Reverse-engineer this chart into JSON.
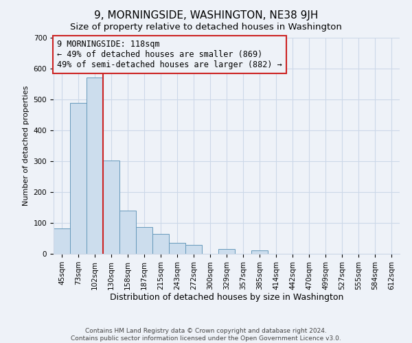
{
  "title": "9, MORNINGSIDE, WASHINGTON, NE38 9JH",
  "subtitle": "Size of property relative to detached houses in Washington",
  "xlabel": "Distribution of detached houses by size in Washington",
  "ylabel": "Number of detached properties",
  "bar_labels": [
    "45sqm",
    "73sqm",
    "102sqm",
    "130sqm",
    "158sqm",
    "187sqm",
    "215sqm",
    "243sqm",
    "272sqm",
    "300sqm",
    "329sqm",
    "357sqm",
    "385sqm",
    "414sqm",
    "442sqm",
    "470sqm",
    "499sqm",
    "527sqm",
    "555sqm",
    "584sqm",
    "612sqm"
  ],
  "bar_values": [
    83,
    488,
    571,
    302,
    140,
    87,
    65,
    36,
    30,
    0,
    16,
    0,
    12,
    0,
    0,
    0,
    0,
    0,
    0,
    0,
    0
  ],
  "bar_color": "#ccdded",
  "bar_edge_color": "#6699bb",
  "grid_color": "#ccd8e8",
  "background_color": "#eef2f8",
  "vline_color": "#cc2222",
  "annotation_line1": "9 MORNINGSIDE: 118sqm",
  "annotation_line2": "← 49% of detached houses are smaller (869)",
  "annotation_line3": "49% of semi-detached houses are larger (882) →",
  "annotation_box_edge": "#cc2222",
  "ylim": [
    0,
    700
  ],
  "yticks": [
    0,
    100,
    200,
    300,
    400,
    500,
    600,
    700
  ],
  "title_fontsize": 11,
  "subtitle_fontsize": 9.5,
  "xlabel_fontsize": 9,
  "ylabel_fontsize": 8,
  "tick_fontsize": 7.5,
  "annotation_fontsize": 8.5,
  "footer_line1": "Contains HM Land Registry data © Crown copyright and database right 2024.",
  "footer_line2": "Contains public sector information licensed under the Open Government Licence v3.0.",
  "footer_fontsize": 6.5
}
